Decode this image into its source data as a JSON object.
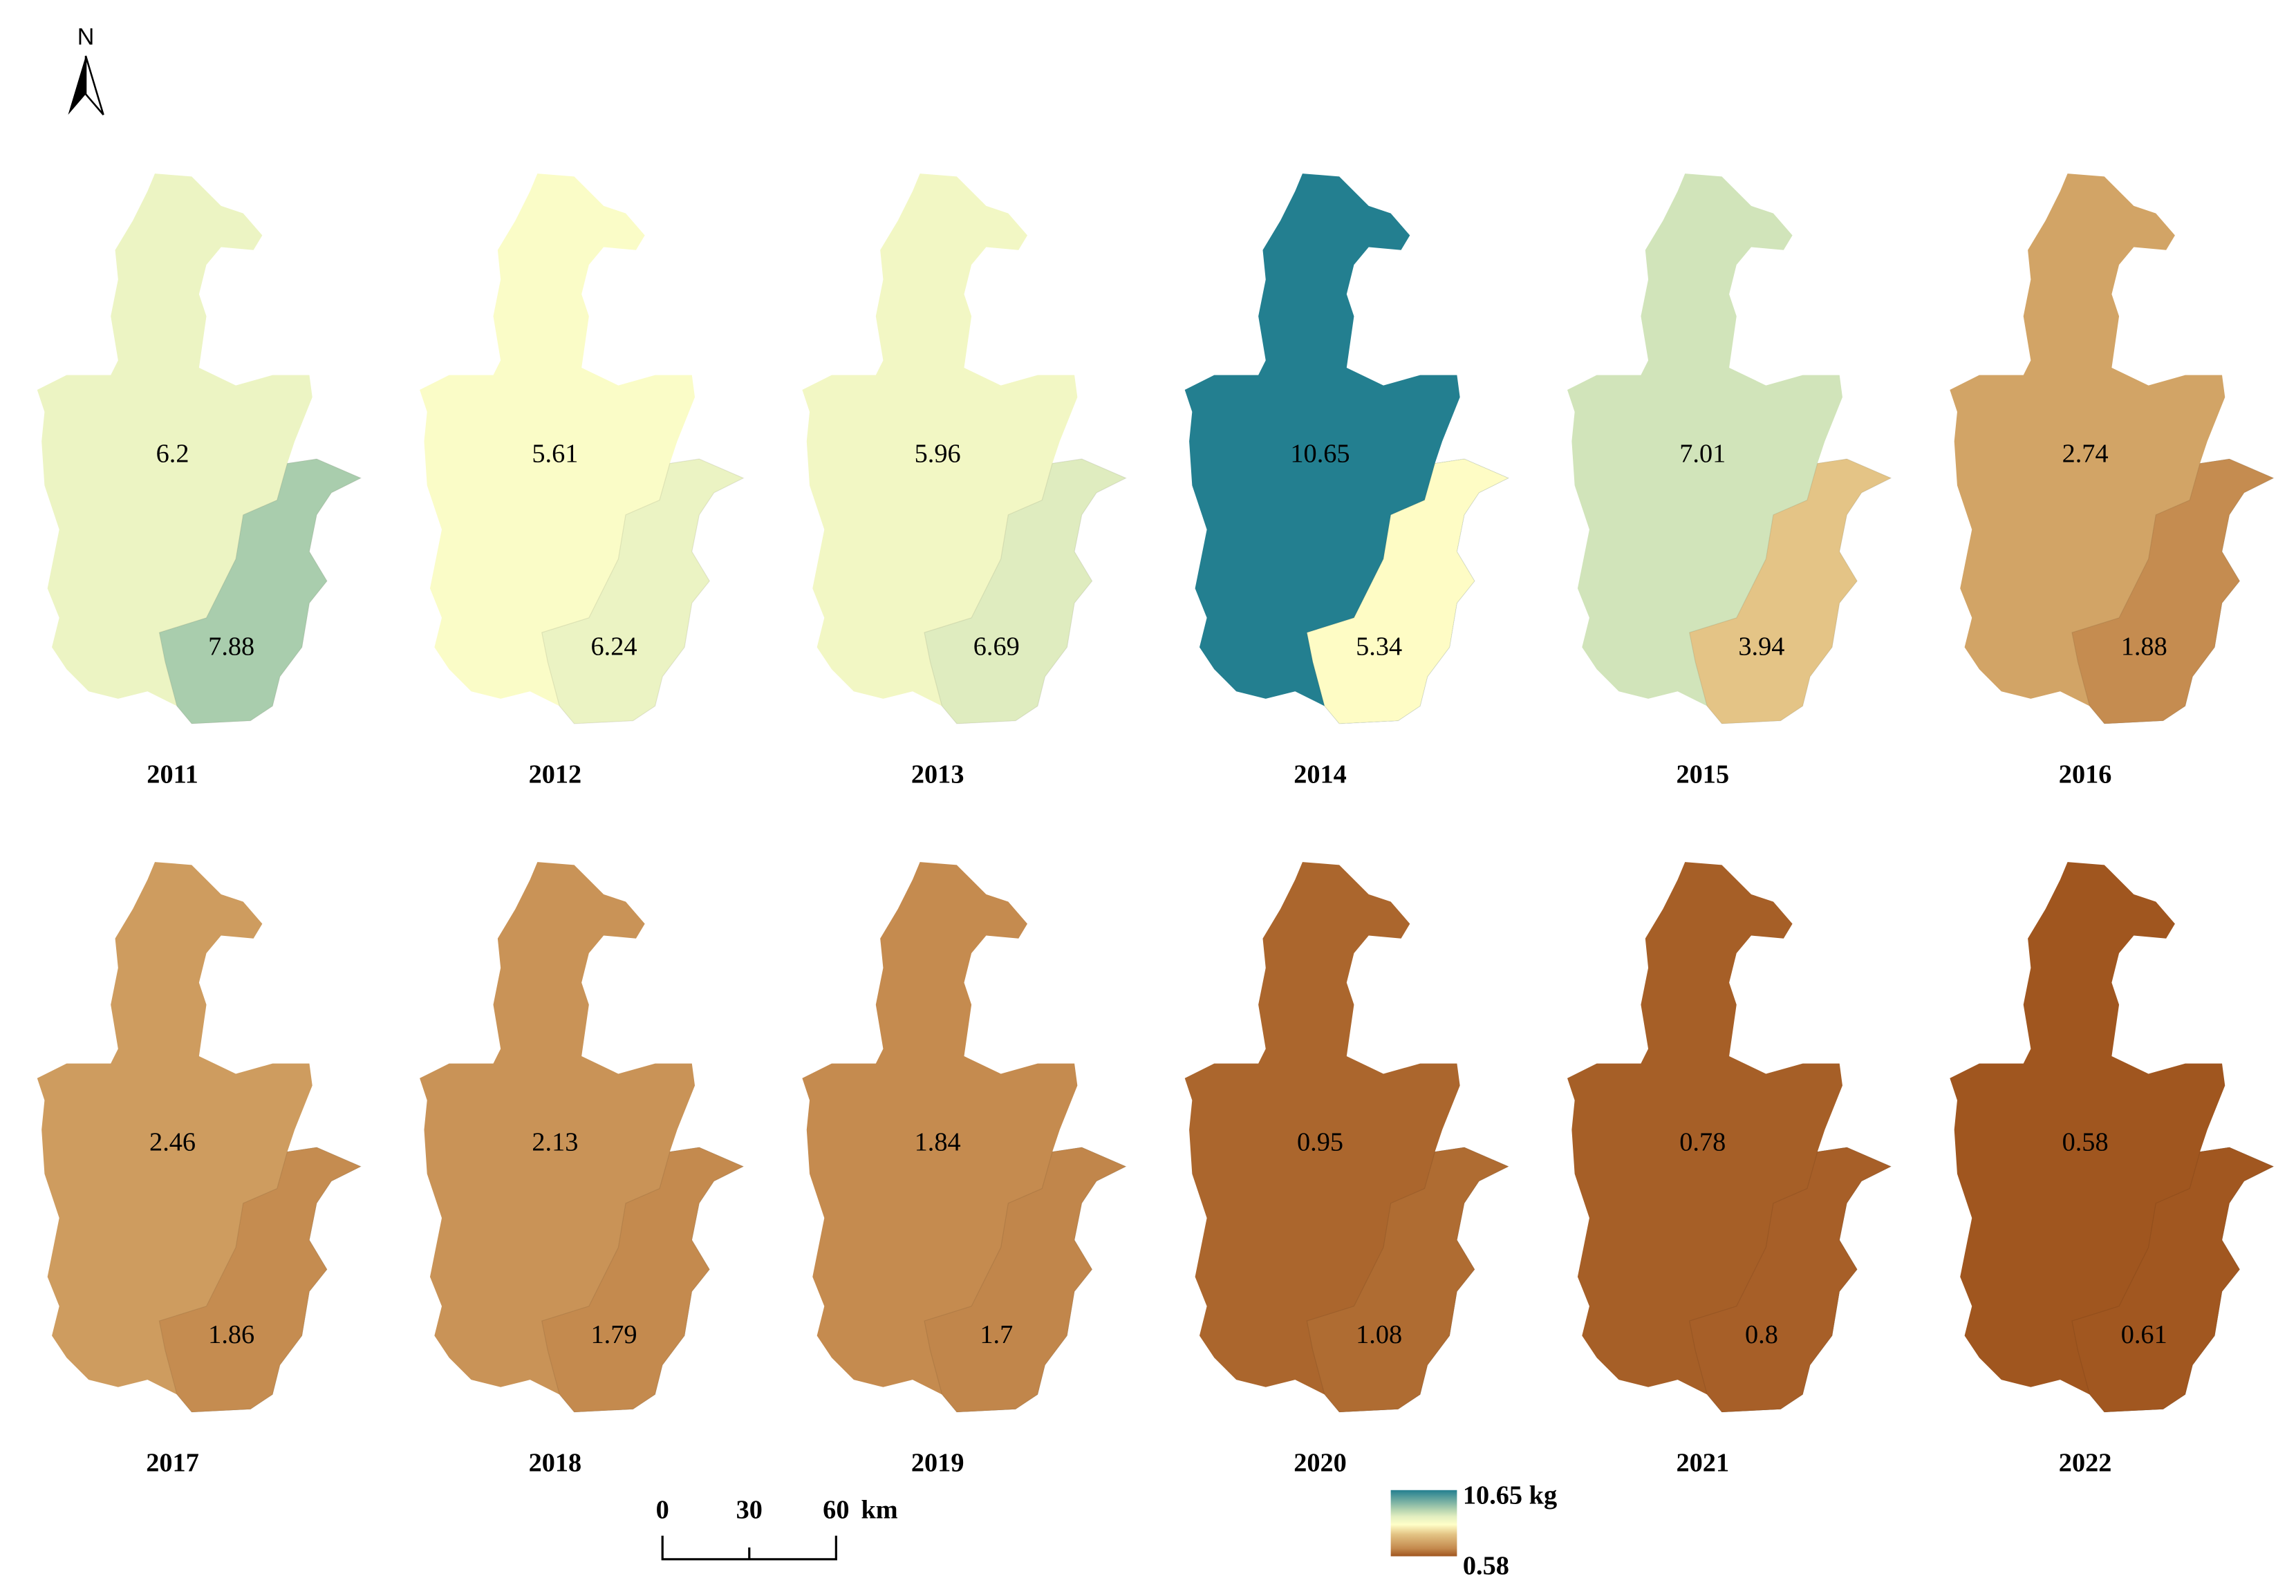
{
  "north": "N",
  "panels": [
    {
      "year": "2011",
      "main": 6.2,
      "coast": 7.88
    },
    {
      "year": "2012",
      "main": 5.61,
      "coast": 6.24
    },
    {
      "year": "2013",
      "main": 5.96,
      "coast": 6.69
    },
    {
      "year": "2014",
      "main": 10.65,
      "coast": 5.34
    },
    {
      "year": "2015",
      "main": 7.01,
      "coast": 3.94
    },
    {
      "year": "2016",
      "main": 2.74,
      "coast": 1.88
    },
    {
      "year": "2017",
      "main": 2.46,
      "coast": 1.86
    },
    {
      "year": "2018",
      "main": 2.13,
      "coast": 1.79
    },
    {
      "year": "2019",
      "main": 1.84,
      "coast": 1.7
    },
    {
      "year": "2020",
      "main": 0.95,
      "coast": 1.08
    },
    {
      "year": "2021",
      "main": 0.78,
      "coast": 0.8
    },
    {
      "year": "2022",
      "main": 0.58,
      "coast": 0.61
    }
  ],
  "legend": {
    "max": 10.65,
    "unit": "kg",
    "min": 0.58
  },
  "scale_bar": {
    "ticks": [
      "0",
      "30",
      "60"
    ],
    "unit": "km"
  }
}
